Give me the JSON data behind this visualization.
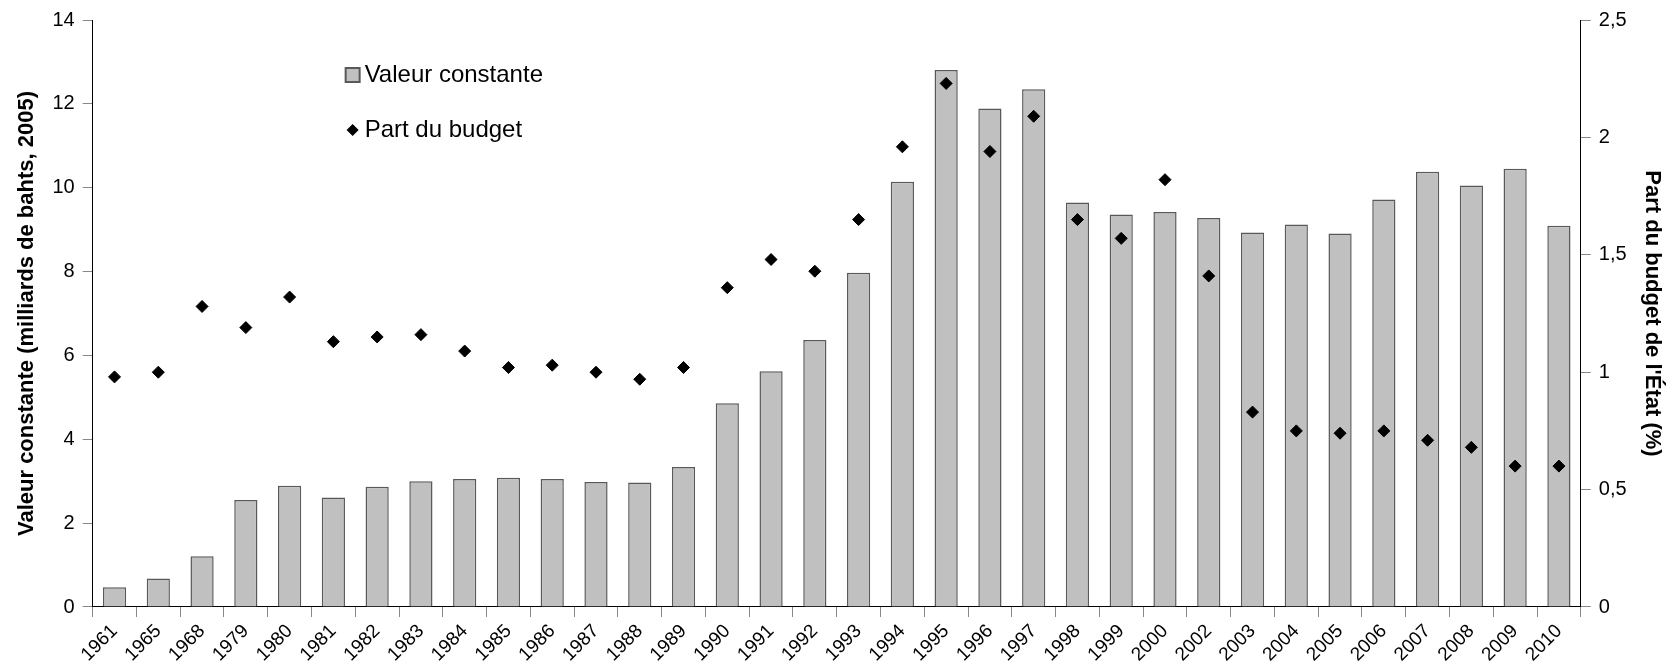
{
  "chart_data": {
    "type": "bar",
    "ylabel": "Valeur constante (milliards de bahts, 2005)",
    "y2label": "Part du budget de l'État (%)",
    "categories": [
      "1961",
      "1965",
      "1968",
      "1979",
      "1980",
      "1981",
      "1982",
      "1983",
      "1984",
      "1985",
      "1986",
      "1987",
      "1988",
      "1989",
      "1990",
      "1991",
      "1992",
      "1993",
      "1994",
      "1995",
      "1996",
      "1997",
      "1998",
      "1999",
      "2000",
      "2002",
      "2003",
      "2004",
      "2005",
      "2006",
      "2007",
      "2008",
      "2009",
      "2010"
    ],
    "series": [
      {
        "name": "Valeur constante",
        "color": "#c0c0c0",
        "values": [
          0.47,
          0.68,
          1.21,
          2.55,
          2.89,
          2.61,
          2.87,
          3.0,
          3.05,
          3.08,
          3.05,
          2.98,
          2.97,
          3.34,
          4.86,
          5.62,
          6.37,
          7.97,
          10.14,
          12.81,
          11.89,
          12.35,
          9.65,
          9.36,
          9.42,
          9.28,
          8.93,
          9.12,
          8.91,
          9.72,
          10.38,
          10.05,
          10.45,
          9.09
        ]
      },
      {
        "name": "Part du budget",
        "type": "scatter",
        "axis": "y2",
        "color": "#000000",
        "marker": "diamond",
        "values": [
          0.98,
          1.0,
          1.28,
          1.19,
          1.32,
          1.13,
          1.15,
          1.16,
          1.09,
          1.02,
          1.03,
          1.0,
          0.97,
          1.02,
          1.36,
          1.48,
          1.43,
          1.65,
          1.96,
          2.23,
          1.94,
          2.09,
          1.65,
          1.57,
          1.82,
          1.41,
          0.83,
          0.75,
          0.74,
          0.75,
          0.71,
          0.68,
          0.6,
          0.6
        ]
      }
    ],
    "ylim": [
      0,
      14
    ],
    "yticks": [
      0,
      2,
      4,
      6,
      8,
      10,
      12,
      14
    ],
    "y2lim": [
      0,
      2.5
    ],
    "y2ticks": [
      0,
      {
        "value": 0.5,
        "label": "0,5"
      },
      1,
      {
        "value": 1.5,
        "label": "1,5"
      },
      2,
      {
        "value": 2.5,
        "label": "2,5"
      }
    ],
    "grid": false,
    "legend": "top left"
  }
}
